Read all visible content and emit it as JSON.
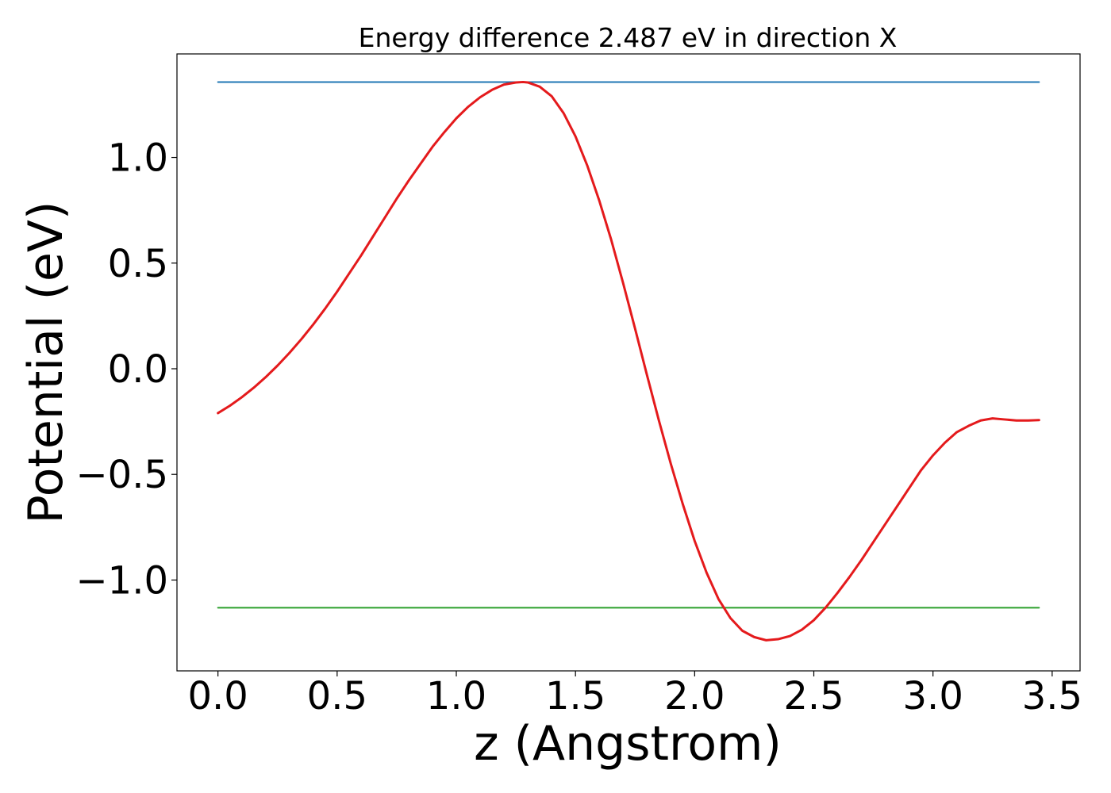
{
  "chart_data": {
    "type": "line",
    "title": "Energy difference 2.487 eV in direction X",
    "xlabel": "z (Angstrom)",
    "ylabel": "Potential (eV)",
    "xlim": [
      -0.172,
      3.617
    ],
    "ylim": [
      -1.43,
      1.49
    ],
    "xticks": [
      {
        "value": 0.0,
        "label": "0.0"
      },
      {
        "value": 0.5,
        "label": "0.5"
      },
      {
        "value": 1.0,
        "label": "1.0"
      },
      {
        "value": 1.5,
        "label": "1.5"
      },
      {
        "value": 2.0,
        "label": "2.0"
      },
      {
        "value": 2.5,
        "label": "2.5"
      },
      {
        "value": 3.0,
        "label": "3.0"
      },
      {
        "value": 3.5,
        "label": "3.5"
      }
    ],
    "yticks": [
      {
        "value": 1.0,
        "label": "1.0"
      },
      {
        "value": 0.5,
        "label": "0.5"
      },
      {
        "value": 0.0,
        "label": "0.0"
      },
      {
        "value": -0.5,
        "label": "−0.5"
      },
      {
        "value": -1.0,
        "label": "−1.0"
      }
    ],
    "grid": false,
    "legend": "none",
    "series": [
      {
        "color": "#1f77b4",
        "line_width": 2,
        "x": [
          0.0,
          3.445
        ],
        "y": [
          1.357,
          1.357
        ]
      },
      {
        "color": "#2ca02c",
        "line_width": 2,
        "x": [
          0.0,
          3.445
        ],
        "y": [
          -1.131,
          -1.131
        ]
      },
      {
        "color": "#e41a1c",
        "line_width": 3,
        "x": [
          0.0,
          0.05,
          0.1,
          0.15,
          0.2,
          0.25,
          0.3,
          0.35,
          0.4,
          0.45,
          0.5,
          0.55,
          0.6,
          0.65,
          0.7,
          0.75,
          0.8,
          0.85,
          0.9,
          0.95,
          1.0,
          1.05,
          1.1,
          1.15,
          1.2,
          1.25,
          1.28,
          1.3,
          1.35,
          1.4,
          1.45,
          1.5,
          1.55,
          1.6,
          1.65,
          1.7,
          1.75,
          1.8,
          1.85,
          1.9,
          1.95,
          2.0,
          2.05,
          2.1,
          2.15,
          2.2,
          2.25,
          2.3,
          2.35,
          2.4,
          2.45,
          2.5,
          2.55,
          2.6,
          2.65,
          2.7,
          2.75,
          2.8,
          2.85,
          2.9,
          2.95,
          3.0,
          3.05,
          3.1,
          3.15,
          3.2,
          3.25,
          3.3,
          3.35,
          3.4,
          3.445
        ],
        "y": [
          -0.21,
          -0.175,
          -0.135,
          -0.09,
          -0.04,
          0.015,
          0.075,
          0.14,
          0.21,
          0.285,
          0.365,
          0.45,
          0.535,
          0.625,
          0.715,
          0.805,
          0.89,
          0.97,
          1.05,
          1.12,
          1.185,
          1.24,
          1.285,
          1.32,
          1.345,
          1.355,
          1.357,
          1.355,
          1.335,
          1.29,
          1.21,
          1.1,
          0.96,
          0.795,
          0.61,
          0.405,
          0.19,
          -0.03,
          -0.245,
          -0.45,
          -0.64,
          -0.815,
          -0.965,
          -1.09,
          -1.18,
          -1.24,
          -1.27,
          -1.285,
          -1.28,
          -1.265,
          -1.235,
          -1.19,
          -1.13,
          -1.06,
          -0.985,
          -0.905,
          -0.82,
          -0.735,
          -0.65,
          -0.565,
          -0.48,
          -0.41,
          -0.35,
          -0.3,
          -0.27,
          -0.245,
          -0.235,
          -0.24,
          -0.245,
          -0.245,
          -0.243
        ]
      }
    ]
  }
}
